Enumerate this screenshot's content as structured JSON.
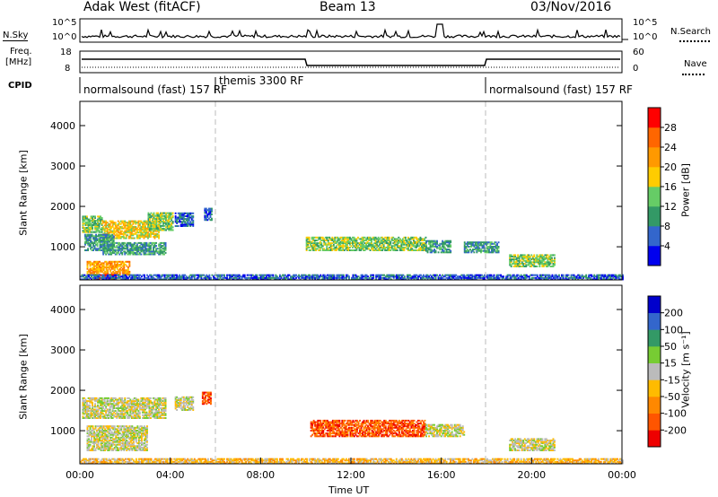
{
  "header": {
    "radar": "Adak West (fitACF)",
    "beam": "Beam 13",
    "date": "03/Nov/2016"
  },
  "top_panels": {
    "nsky_label": "N.Sky",
    "nsearch_label": "N.Search",
    "freq_label_1": "Freq.",
    "freq_label_2": "[MHz]",
    "nave_label": "Nave",
    "cpid_label": "CPID",
    "nsky_ticks": [
      "10^5",
      "10^0"
    ],
    "nsearch_ticks": [
      "10^5",
      "10^0"
    ],
    "freq_ticks": [
      "18",
      "8"
    ],
    "nave_ticks": [
      "60",
      "0"
    ],
    "cpid_segments": [
      {
        "label": "normalsound (fast)  157 RF",
        "start_h": 0,
        "end_h": 6
      },
      {
        "label": "themis 3300 RF",
        "start_h": 6,
        "end_h": 18
      },
      {
        "label": "normalsound (fast)  157 RF",
        "start_h": 18,
        "end_h": 24
      }
    ]
  },
  "chart_data": [
    {
      "type": "heatmap",
      "name": "power",
      "ylabel": "Slant Range [km]",
      "yticks": [
        1000,
        2000,
        3000,
        4000
      ],
      "ylim": [
        180,
        4600
      ],
      "xlim_hours": [
        0,
        24
      ],
      "colorbar": {
        "label": "Power [dB]",
        "tick_labels": [
          "4",
          "8",
          "12",
          "16",
          "20",
          "24",
          "28"
        ],
        "colors": [
          "#0000ee",
          "#3366cc",
          "#339966",
          "#66cc66",
          "#ffcc00",
          "#ff9900",
          "#ff6600",
          "#ff0000"
        ]
      },
      "regions": [
        {
          "t0": 0.1,
          "t1": 1.0,
          "r0": 1350,
          "r1": 1750,
          "level": 3
        },
        {
          "t0": 1.0,
          "t1": 3.5,
          "r0": 1200,
          "r1": 1650,
          "level": 4
        },
        {
          "t0": 3.0,
          "t1": 4.1,
          "r0": 1400,
          "r1": 1850,
          "level": 3
        },
        {
          "t0": 0.2,
          "t1": 1.5,
          "r0": 900,
          "r1": 1300,
          "level": 2
        },
        {
          "t0": 1.0,
          "t1": 3.8,
          "r0": 800,
          "r1": 1100,
          "level": 2
        },
        {
          "t0": 0.3,
          "t1": 2.2,
          "r0": 300,
          "r1": 650,
          "level": 5
        },
        {
          "t0": 0.6,
          "t1": 1.6,
          "r0": 180,
          "r1": 320,
          "level": 7
        },
        {
          "t0": 4.2,
          "t1": 5.0,
          "r0": 1500,
          "r1": 1850,
          "level": 1
        },
        {
          "t0": 5.5,
          "t1": 5.8,
          "r0": 1650,
          "r1": 1950,
          "level": 1
        },
        {
          "t0": 10.0,
          "t1": 15.3,
          "r0": 900,
          "r1": 1250,
          "level": 3
        },
        {
          "t0": 15.3,
          "t1": 16.4,
          "r0": 850,
          "r1": 1150,
          "level": 2
        },
        {
          "t0": 17.0,
          "t1": 18.5,
          "r0": 850,
          "r1": 1100,
          "level": 2
        },
        {
          "t0": 19.0,
          "t1": 21.0,
          "r0": 500,
          "r1": 800,
          "level": 3
        },
        {
          "t0": 0.0,
          "t1": 24.0,
          "r0": 180,
          "r1": 300,
          "level": 1
        }
      ]
    },
    {
      "type": "heatmap",
      "name": "velocity",
      "ylabel": "Slant Range [km]",
      "yticks": [
        1000,
        2000,
        3000,
        4000
      ],
      "ylim": [
        180,
        4600
      ],
      "xlim_hours": [
        0,
        24
      ],
      "xticks": [
        "00:00",
        "04:00",
        "08:00",
        "12:00",
        "16:00",
        "20:00",
        "00:00"
      ],
      "xlabel": "Time UT",
      "colorbar": {
        "label": "Velocity [m s⁻¹]",
        "tick_labels": [
          "-200",
          "-100",
          "-50",
          "-15",
          "15",
          "50",
          "100",
          "200"
        ],
        "colors": [
          "#ee0000",
          "#ff5500",
          "#ff8800",
          "#ffbb00",
          "#bbbbbb",
          "#77cc33",
          "#339966",
          "#3366cc",
          "#0000cc"
        ]
      },
      "regions": [
        {
          "t0": 0.1,
          "t1": 3.8,
          "r0": 1300,
          "r1": 1800,
          "level": 4
        },
        {
          "t0": 0.3,
          "t1": 3.0,
          "r0": 500,
          "r1": 1100,
          "level": 4
        },
        {
          "t0": 4.2,
          "t1": 5.0,
          "r0": 1500,
          "r1": 1850,
          "level": 4
        },
        {
          "t0": 5.4,
          "t1": 5.8,
          "r0": 1650,
          "r1": 1950,
          "level": 1
        },
        {
          "t0": 10.2,
          "t1": 15.3,
          "r0": 850,
          "r1": 1250,
          "level": 1
        },
        {
          "t0": 15.3,
          "t1": 17.0,
          "r0": 850,
          "r1": 1150,
          "level": 4
        },
        {
          "t0": 19.0,
          "t1": 21.0,
          "r0": 500,
          "r1": 800,
          "level": 4
        },
        {
          "t0": 0.0,
          "t1": 24.0,
          "r0": 180,
          "r1": 300,
          "level": 3
        }
      ]
    }
  ]
}
